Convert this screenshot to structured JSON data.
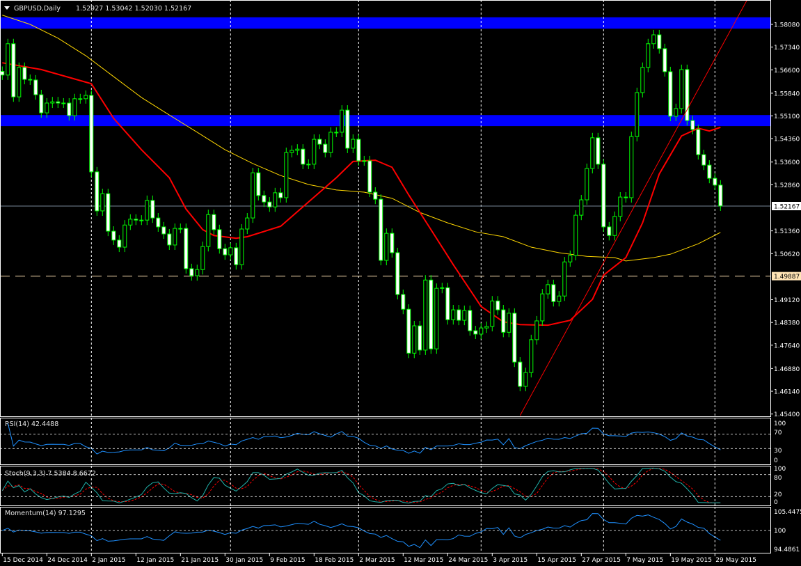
{
  "header": {
    "symbol": "GBPUSD,Daily",
    "ohlc": "1.52927 1.53042 1.52030 1.52167"
  },
  "colors": {
    "background": "#000000",
    "candle_outline": "#00ff00",
    "bull_body": "#000000",
    "bear_body": "#ffffff",
    "ma_fast": "#ff0000",
    "ma_slow": "#ffd700",
    "zone": "#0000ff",
    "trendline": "#ff0000",
    "rsi": "#1e90ff",
    "stoch_main": "#20b2aa",
    "stoch_signal": "#ff0000",
    "momentum": "#1e90ff"
  },
  "price_axis": {
    "labels": [
      "1.58080",
      "1.57340",
      "1.56600",
      "1.55840",
      "1.55100",
      "1.54360",
      "1.53600",
      "1.52860",
      "1.51360",
      "1.50620",
      "1.49120",
      "1.48380",
      "1.47640",
      "1.46880",
      "1.46140",
      "1.45400"
    ],
    "current_price": "1.52167",
    "level_price": "1.49887"
  },
  "date_axis": {
    "labels": [
      "15 Dec 2014",
      "24 Dec 2014",
      "2 Jan 2015",
      "12 Jan 2015",
      "21 Jan 2015",
      "30 Jan 2015",
      "9 Feb 2015",
      "18 Feb 2015",
      "2 Mar 2015",
      "12 Mar 2015",
      "24 Mar 2015",
      "3 Apr 2015",
      "15 Apr 2015",
      "27 Apr 2015",
      "7 May 2015",
      "19 May 2015",
      "29 May 2015"
    ]
  },
  "indicators": {
    "rsi": {
      "label": "RSI(14) 42.4488",
      "levels": [
        "100",
        "70",
        "30",
        "0"
      ]
    },
    "stoch": {
      "label": "Stoch(9,3,3) 7.5384 8.6672",
      "levels": [
        "100",
        "80",
        "20",
        "0"
      ]
    },
    "momentum": {
      "label": "Momentum(14) 97.1295",
      "levels": [
        "105.4475",
        "100",
        "94.4861"
      ]
    }
  },
  "chart_data": {
    "type": "candlestick",
    "title": "GBPUSD,Daily",
    "ylim": [
      1.454,
      1.5808
    ],
    "closes": [
      1.5643,
      1.5745,
      1.5572,
      1.5668,
      1.5629,
      1.5627,
      1.5579,
      1.552,
      1.5552,
      1.5556,
      1.5552,
      1.5552,
      1.5511,
      1.5566,
      1.5566,
      1.5577,
      1.5328,
      1.5201,
      1.5257,
      1.5135,
      1.5106,
      1.5083,
      1.5155,
      1.5174,
      1.5171,
      1.5171,
      1.5235,
      1.5178,
      1.5149,
      1.5126,
      1.509,
      1.5144,
      1.5144,
      1.5013,
      1.499,
      1.501,
      1.5085,
      1.5189,
      1.514,
      1.5078,
      1.5058,
      1.5081,
      1.5026,
      1.5142,
      1.5178,
      1.5325,
      1.5251,
      1.523,
      1.5214,
      1.526,
      1.5244,
      1.5391,
      1.5398,
      1.5402,
      1.5353,
      1.5353,
      1.5434,
      1.5418,
      1.5391,
      1.5457,
      1.5457,
      1.5529,
      1.5405,
      1.5434,
      1.5364,
      1.5364,
      1.5262,
      1.5239,
      1.504,
      1.5128,
      1.5065,
      1.4929,
      1.4881,
      1.4738,
      1.4827,
      1.4748,
      1.4976,
      1.4752,
      1.4949,
      1.4951,
      1.4847,
      1.4879,
      1.4845,
      1.4877,
      1.4811,
      1.48,
      1.482,
      1.4825,
      1.4908,
      1.4879,
      1.4806,
      1.4868,
      1.4709,
      1.463,
      1.4675,
      1.4782,
      1.4843,
      1.4931,
      1.4961,
      1.4906,
      1.4924,
      1.5035,
      1.5056,
      1.5187,
      1.5237,
      1.5339,
      1.5439,
      1.5353,
      1.5149,
      1.5121,
      1.5183,
      1.5246,
      1.5244,
      1.5443,
      1.5586,
      1.5668,
      1.5745,
      1.5774,
      1.5729,
      1.5654,
      1.5509,
      1.5534,
      1.5661,
      1.5495,
      1.5466,
      1.5384,
      1.535,
      1.5307,
      1.5285,
      1.5217
    ],
    "ma_fast": {
      "index": [
        0,
        7,
        15,
        16,
        20,
        25,
        30,
        33,
        36,
        38,
        42,
        44,
        50,
        55,
        60,
        63,
        67,
        70,
        73,
        77,
        81,
        86,
        90,
        93,
        98,
        102,
        106,
        108,
        112,
        115,
        118,
        122,
        125,
        127,
        129
      ],
      "values": [
        1.5683,
        1.5661,
        1.562,
        1.5615,
        1.5502,
        1.54,
        1.5309,
        1.5207,
        1.514,
        1.5121,
        1.5112,
        1.5117,
        1.5151,
        1.523,
        1.5309,
        1.5362,
        1.5366,
        1.5343,
        1.5253,
        1.514,
        1.5026,
        1.489,
        1.484,
        1.4831,
        1.4829,
        1.4845,
        1.4913,
        1.4992,
        1.5049,
        1.5162,
        1.5321,
        1.5445,
        1.547,
        1.5461,
        1.5473
      ]
    },
    "ma_slow": {
      "index": [
        0,
        5,
        10,
        15,
        20,
        25,
        30,
        35,
        40,
        45,
        50,
        55,
        60,
        65,
        70,
        75,
        80,
        85,
        90,
        95,
        100,
        105,
        110,
        112,
        117,
        120,
        125,
        129
      ],
      "values": [
        1.5838,
        1.5808,
        1.5763,
        1.5706,
        1.5638,
        1.557,
        1.5513,
        1.5457,
        1.54,
        1.5355,
        1.5316,
        1.5287,
        1.5269,
        1.5262,
        1.5242,
        1.5196,
        1.5162,
        1.5133,
        1.5117,
        1.5083,
        1.5065,
        1.5053,
        1.5049,
        1.5038,
        1.5049,
        1.506,
        1.5094,
        1.5131
      ]
    },
    "zones": [
      [
        1.5794,
        1.5831
      ],
      [
        1.5477,
        1.5513
      ]
    ],
    "level": 1.49887,
    "current": 1.52167,
    "trendline": {
      "index": [
        93,
        129
      ],
      "values": [
        1.4535,
        1.5729
      ]
    }
  }
}
